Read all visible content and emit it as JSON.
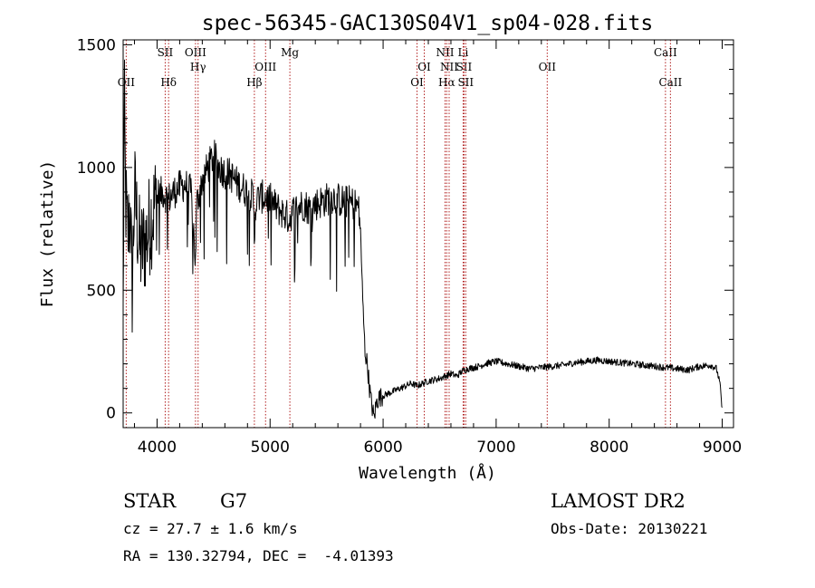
{
  "chart_data": {
    "type": "line",
    "title": "spec-56345-GAC130S04V1_sp04-028.fits",
    "xlabel": "Wavelength (Å)",
    "ylabel": "Flux (relative)",
    "xlim": [
      3700,
      9100
    ],
    "ylim": [
      -60,
      1520
    ],
    "xticks": [
      4000,
      5000,
      6000,
      7000,
      8000,
      9000
    ],
    "yticks": [
      0,
      500,
      1000,
      1500
    ],
    "grid": false,
    "spectrum_anchors": {
      "x": [
        3700,
        3710,
        3720,
        3740,
        3760,
        3780,
        3800,
        3850,
        3900,
        3950,
        4000,
        4050,
        4100,
        4150,
        4200,
        4250,
        4300,
        4330,
        4340,
        4350,
        4400,
        4450,
        4500,
        4550,
        4600,
        4650,
        4700,
        4750,
        4800,
        4850,
        4861,
        4870,
        4900,
        4950,
        5000,
        5050,
        5100,
        5150,
        5170,
        5180,
        5200,
        5250,
        5300,
        5350,
        5400,
        5450,
        5500,
        5550,
        5600,
        5650,
        5700,
        5750,
        5780,
        5800,
        5820,
        5840,
        5860,
        5880,
        5900,
        5920,
        5940,
        5960,
        6000,
        6050,
        6100,
        6150,
        6200,
        6250,
        6300,
        6350,
        6400,
        6450,
        6500,
        6550,
        6600,
        6650,
        6700,
        6750,
        6800,
        6850,
        6900,
        6950,
        7000,
        7100,
        7200,
        7300,
        7400,
        7500,
        7600,
        7700,
        7800,
        7900,
        8000,
        8100,
        8200,
        8300,
        8400,
        8500,
        8600,
        8700,
        8800,
        8900,
        8950,
        8980,
        9000
      ],
      "y": [
        380,
        1300,
        900,
        700,
        850,
        500,
        900,
        650,
        700,
        800,
        880,
        900,
        870,
        900,
        920,
        930,
        900,
        700,
        600,
        850,
        950,
        1000,
        1050,
        1000,
        980,
        970,
        940,
        920,
        900,
        880,
        700,
        850,
        880,
        880,
        870,
        840,
        820,
        800,
        790,
        800,
        820,
        840,
        850,
        830,
        850,
        860,
        870,
        880,
        870,
        860,
        860,
        850,
        840,
        750,
        450,
        250,
        200,
        100,
        30,
        -20,
        40,
        60,
        70,
        80,
        90,
        100,
        110,
        120,
        110,
        120,
        130,
        135,
        140,
        150,
        160,
        150,
        170,
        180,
        185,
        190,
        200,
        205,
        210,
        200,
        190,
        180,
        185,
        190,
        195,
        205,
        210,
        215,
        210,
        205,
        200,
        195,
        190,
        185,
        180,
        175,
        190,
        195,
        180,
        120,
        10
      ]
    },
    "spectral_lines": [
      {
        "name": "OII",
        "x": 3727,
        "row": 3
      },
      {
        "name": "SII",
        "x": 4072,
        "row": 1
      },
      {
        "name": "Hδ",
        "x": 4102,
        "row": 3
      },
      {
        "name": "OIII",
        "x": 4340,
        "row": 1
      },
      {
        "name": "Hγ",
        "x": 4363,
        "row": 2
      },
      {
        "name": "Hβ",
        "x": 4861,
        "row": 3
      },
      {
        "name": "OIII",
        "x": 4960,
        "row": 2
      },
      {
        "name": "Mg",
        "x": 5175,
        "row": 1
      },
      {
        "name": "OI",
        "x": 6300,
        "row": 3
      },
      {
        "name": "OI",
        "x": 6364,
        "row": 2
      },
      {
        "name": "NII",
        "x": 6548,
        "row": 1
      },
      {
        "name": "Hα",
        "x": 6563,
        "row": 3
      },
      {
        "name": "NII",
        "x": 6584,
        "row": 2
      },
      {
        "name": "Li",
        "x": 6708,
        "row": 1
      },
      {
        "name": "SII",
        "x": 6716,
        "row": 2
      },
      {
        "name": "SII",
        "x": 6731,
        "row": 3
      },
      {
        "name": "OII",
        "x": 7452,
        "row": 2
      },
      {
        "name": "CaII",
        "x": 8498,
        "row": 1
      },
      {
        "name": "CaII",
        "x": 8542,
        "row": 3
      }
    ]
  },
  "info": {
    "object_class": "STAR",
    "subclass": "G7",
    "redshift": "cz = 27.7 ± 1.6 km/s",
    "coords": "RA = 130.32794, DEC =  -4.01393",
    "survey": "LAMOST DR2",
    "obs_date": "Obs-Date: 20130221"
  },
  "colors": {
    "spectrum": "#000000",
    "line_marker": "#b22222"
  }
}
